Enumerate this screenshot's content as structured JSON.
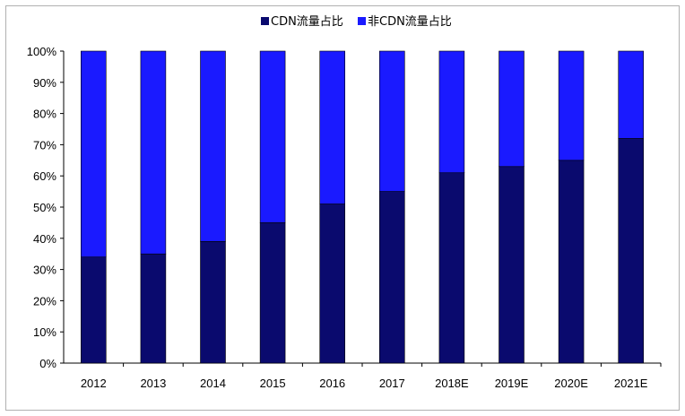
{
  "chart_data": {
    "type": "bar",
    "stacked": true,
    "categories": [
      "2012",
      "2013",
      "2014",
      "2015",
      "2016",
      "2017",
      "2018E",
      "2019E",
      "2020E",
      "2021E"
    ],
    "series": [
      {
        "name": "CDN流量占比",
        "color": "#0a0a6e",
        "values": [
          34,
          35,
          39,
          45,
          51,
          55,
          61,
          63,
          65,
          72
        ]
      },
      {
        "name": "非CDN流量占比",
        "color": "#1a1aff",
        "values": [
          66,
          65,
          61,
          55,
          49,
          45,
          39,
          37,
          35,
          28
        ]
      }
    ],
    "y_ticks": [
      "0%",
      "10%",
      "20%",
      "30%",
      "40%",
      "50%",
      "60%",
      "70%",
      "80%",
      "90%",
      "100%"
    ],
    "ylim": [
      0,
      100
    ],
    "legend_position": "top-center",
    "grid": false
  }
}
